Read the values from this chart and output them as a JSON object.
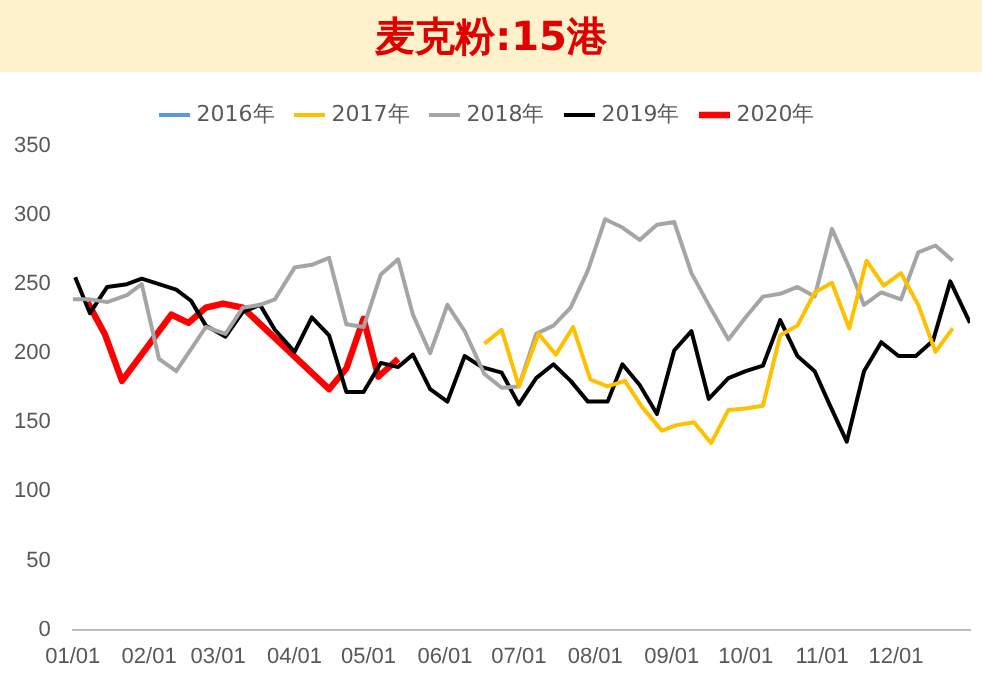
{
  "chart_data": {
    "type": "line",
    "title": "麦克粉:15港",
    "xlim": [
      "--01-01",
      "--12-31"
    ],
    "ylim": [
      0,
      350
    ],
    "yticks": [
      0,
      50,
      100,
      150,
      200,
      250,
      300,
      350
    ],
    "xticks": [
      {
        "value": "--01-01",
        "label": "01/01"
      },
      {
        "value": "--02-01",
        "label": "02/01"
      },
      {
        "value": "--03-01",
        "label": "03/01"
      },
      {
        "value": "--04-01",
        "label": "04/01"
      },
      {
        "value": "--05-01",
        "label": "05/01"
      },
      {
        "value": "--06-01",
        "label": "06/01"
      },
      {
        "value": "--07-01",
        "label": "07/01"
      },
      {
        "value": "--08-01",
        "label": "08/01"
      },
      {
        "value": "--09-01",
        "label": "09/01"
      },
      {
        "value": "--10-01",
        "label": "10/01"
      },
      {
        "value": "--11-01",
        "label": "11/01"
      },
      {
        "value": "--12-01",
        "label": "12/01"
      }
    ],
    "grid": false,
    "legend": "top",
    "marker": "none",
    "line_style": "solid",
    "series": [
      {
        "name": "2016年",
        "color": "#5b9bd5"
      },
      {
        "name": "2017年",
        "color": "#ffc000",
        "x": [
          "--06-17",
          "--06-24",
          "--07-01",
          "--07-09",
          "--07-16",
          "--07-23",
          "--07-30",
          "--08-06",
          "--08-13",
          "--08-20",
          "--08-28",
          "--09-03",
          "--09-10",
          "--09-17",
          "--09-24",
          "--10-01",
          "--10-08",
          "--10-15",
          "--10-22",
          "--10-29",
          "--11-05",
          "--11-12",
          "--11-19",
          "--11-26",
          "--12-03",
          "--12-10",
          "--12-17",
          "--12-24"
        ],
        "values": [
          207,
          217,
          176,
          214,
          199,
          219,
          181,
          176,
          180,
          161,
          144,
          148,
          150,
          135,
          159,
          160,
          162,
          213,
          220,
          244,
          251,
          218,
          267,
          249,
          258,
          235,
          201,
          218
        ]
      },
      {
        "name": "2018年",
        "color": "#a5a5a5",
        "x": [
          "--01-01",
          "--01-08",
          "--01-15",
          "--01-23",
          "--01-29",
          "--02-05",
          "--02-12",
          "--02-18",
          "--02-24",
          "--03-04",
          "--03-11",
          "--03-18",
          "--03-24",
          "--04-01",
          "--04-08",
          "--04-15",
          "--04-22",
          "--04-29",
          "--05-06",
          "--05-13",
          "--05-19",
          "--05-26",
          "--06-02",
          "--06-09",
          "--06-17",
          "--06-24",
          "--07-01",
          "--07-08",
          "--07-15",
          "--07-22",
          "--07-29",
          "--08-05",
          "--08-12",
          "--08-19",
          "--08-26",
          "--09-02",
          "--09-09",
          "--09-16",
          "--09-24",
          "--10-01",
          "--10-08",
          "--10-15",
          "--10-22",
          "--10-29",
          "--11-05",
          "--11-12",
          "--11-18",
          "--11-25",
          "--12-03",
          "--12-10",
          "--12-17",
          "--12-24"
        ],
        "values": [
          239,
          239,
          237,
          242,
          250,
          196,
          187,
          203,
          219,
          214,
          233,
          235,
          239,
          262,
          264,
          269,
          221,
          219,
          257,
          268,
          228,
          200,
          235,
          216,
          185,
          175,
          176,
          214,
          220,
          233,
          260,
          297,
          291,
          282,
          293,
          295,
          258,
          235,
          210,
          226,
          241,
          243,
          248,
          241,
          290,
          262,
          235,
          244,
          239,
          273,
          278,
          267
        ]
      },
      {
        "name": "2019年",
        "color": "#000000",
        "x": [
          "--01-02",
          "--01-08",
          "--01-15",
          "--01-23",
          "--01-29",
          "--02-05",
          "--02-12",
          "--02-18",
          "--02-24",
          "--03-04",
          "--03-11",
          "--03-18",
          "--03-24",
          "--04-01",
          "--04-08",
          "--04-15",
          "--04-22",
          "--04-29",
          "--05-06",
          "--05-13",
          "--05-19",
          "--05-26",
          "--06-02",
          "--06-09",
          "--06-16",
          "--06-24",
          "--07-01",
          "--07-08",
          "--07-15",
          "--07-22",
          "--07-29",
          "--08-06",
          "--08-12",
          "--08-19",
          "--08-26",
          "--09-02",
          "--09-09",
          "--09-16",
          "--09-24",
          "--10-01",
          "--10-08",
          "--10-15",
          "--10-22",
          "--10-29",
          "--11-04",
          "--11-11",
          "--11-18",
          "--11-25",
          "--12-02",
          "--12-09",
          "--12-16",
          "--12-23",
          "--12-31"
        ],
        "values": [
          255,
          229,
          248,
          250,
          254,
          250,
          246,
          238,
          220,
          212,
          230,
          235,
          217,
          201,
          226,
          213,
          172,
          172,
          193,
          190,
          199,
          174,
          165,
          198,
          190,
          186,
          163,
          182,
          192,
          180,
          165,
          165,
          192,
          177,
          156,
          202,
          216,
          167,
          182,
          187,
          191,
          224,
          198,
          187,
          163,
          136,
          187,
          208,
          198,
          198,
          209,
          252,
          222
        ]
      },
      {
        "name": "2020年",
        "color": "#ff0000",
        "x": [
          "--01-07",
          "--01-14",
          "--01-21",
          "--02-10",
          "--02-17",
          "--02-24",
          "--03-03",
          "--03-11",
          "--04-15",
          "--04-22",
          "--04-29",
          "--05-05",
          "--05-13"
        ],
        "values": [
          237,
          214,
          180,
          228,
          222,
          233,
          236,
          233,
          174,
          189,
          225,
          183,
          196
        ]
      }
    ]
  }
}
